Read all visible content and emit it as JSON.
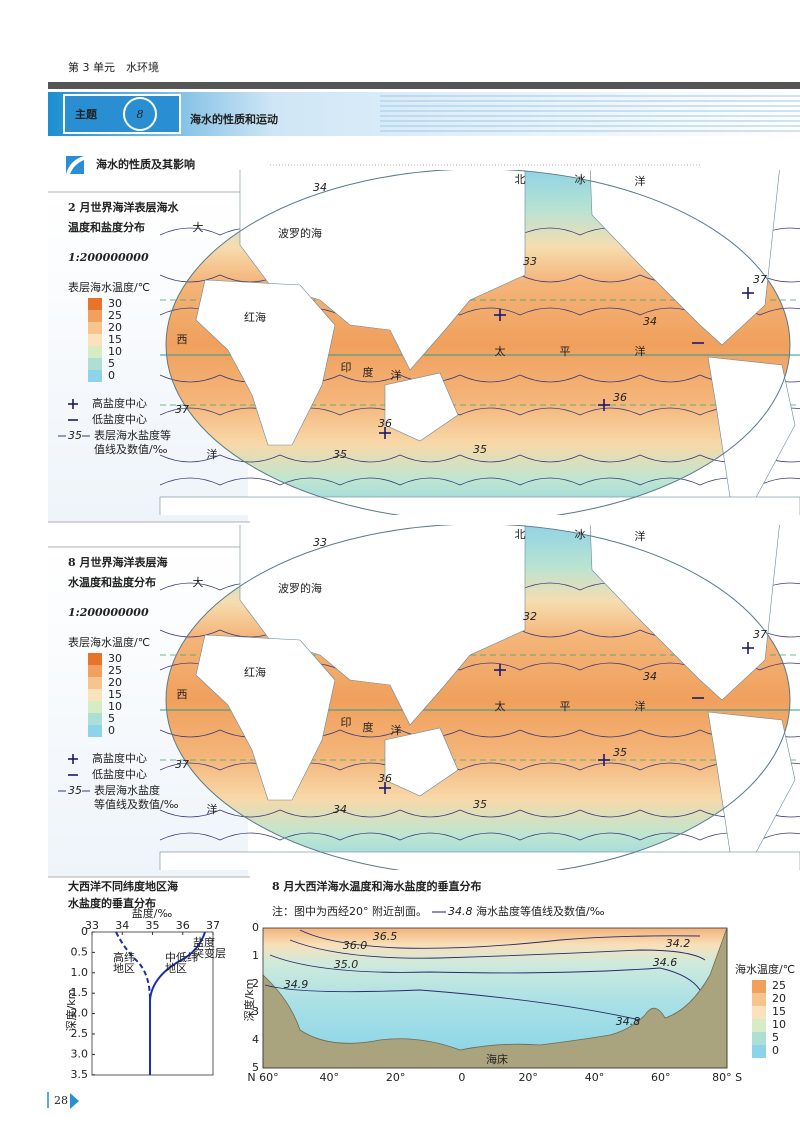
{
  "header": {
    "unit": "第 3 单元　水环境",
    "topic_label": "主题",
    "topic_number": "8",
    "title": "海水的性质和运动"
  },
  "section": {
    "title": "海水的性质及其影响"
  },
  "maps": [
    {
      "title_line1": "2 月世界海洋表层海水",
      "title_line2": "温度和盐度分布",
      "scale": "1:200000000",
      "legend": {
        "title": "表层海水温度/℃",
        "ticks": [
          "30",
          "25",
          "20",
          "15",
          "10",
          "5",
          "0"
        ],
        "high": "高盐度中心",
        "low": "低盐度中心",
        "isoline_sample": "35",
        "isoline_line1": "表层海水盐度等",
        "isoline_line2": "值线及数值/‰"
      },
      "labels": [
        "北",
        "冰",
        "洋",
        "波罗的海",
        "红海",
        "太",
        "平",
        "洋",
        "印",
        "度",
        "洋",
        "大",
        "西",
        "洋",
        "33",
        "34",
        "35",
        "36",
        "37",
        "36",
        "35",
        "34",
        "37"
      ]
    },
    {
      "title_line1": "8 月世界海洋表层海",
      "title_line2": "水温度和盐度分布",
      "scale": "1:200000000",
      "legend": {
        "title": "表层海水温度/℃",
        "ticks": [
          "30",
          "25",
          "20",
          "15",
          "10",
          "5",
          "0"
        ],
        "high": "高盐度中心",
        "low": "低盐度中心",
        "isoline_sample": "35",
        "isoline_line1": "表层海水盐度",
        "isoline_line2": "等值线及数值/‰"
      },
      "labels": [
        "北",
        "冰",
        "洋",
        "波罗的海",
        "红海",
        "太",
        "平",
        "洋",
        "印",
        "度",
        "洋",
        "大",
        "西",
        "洋",
        "32",
        "34",
        "35",
        "35",
        "37",
        "36",
        "34",
        "33",
        "37"
      ]
    }
  ],
  "profile_chart": {
    "title_line1": "大西洋不同纬度地区海",
    "title_line2": "水盐度的垂直分布",
    "x_title": "盐度/‰",
    "x_ticks": [
      "33",
      "34",
      "35",
      "36",
      "37"
    ],
    "y_title": "深度/km",
    "y_ticks": [
      "0",
      "0.5",
      "1.0",
      "1.5",
      "2.0",
      "2.5",
      "3.0",
      "3.5"
    ],
    "high_lat": [
      "高纬",
      "地区"
    ],
    "low_lat": [
      "中低纬",
      "地区"
    ],
    "halocline": [
      "盐度",
      "突变层"
    ]
  },
  "section_chart": {
    "title": "8 月大西洋海水温度和海水盐度的垂直分布",
    "note": "注：图中为西经20° 附近剖面。",
    "isoline_sample": "34.8",
    "isoline_text": "海水盐度等值线及数值/‰",
    "y_title": "深度/km",
    "y_ticks": [
      "0",
      "1",
      "2",
      "3",
      "4",
      "5"
    ],
    "x_ticks": [
      "N 60°",
      "40°",
      "20°",
      "0",
      "20°",
      "40°",
      "60°",
      "80° S"
    ],
    "contours": [
      "36.5",
      "36.0",
      "35.0",
      "34.9",
      "34.2",
      "34.6",
      "34.8"
    ],
    "seabed": "海床",
    "legend_title": "海水温度/℃",
    "legend_ticks": [
      "25",
      "20",
      "15",
      "10",
      "5",
      "0"
    ]
  },
  "footer": {
    "page": "28"
  }
}
